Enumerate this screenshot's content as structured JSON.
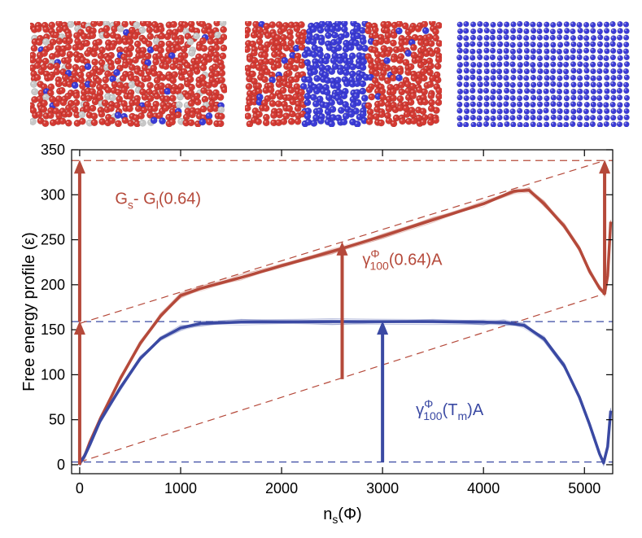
{
  "chart_data": {
    "type": "line",
    "xlabel": "n_s(Φ)",
    "ylabel": "Free energy profile (ε)",
    "xlim": [
      -80,
      5280
    ],
    "ylim": [
      -10,
      350
    ],
    "xticks": [
      "0",
      "1000",
      "2000",
      "3000",
      "4000",
      "5000"
    ],
    "yticks": [
      "0",
      "50",
      "100",
      "150",
      "200",
      "250",
      "300",
      "350"
    ],
    "colors": {
      "red": "#b5493a",
      "blue": "#3a49a3"
    },
    "series": [
      {
        "color": "red",
        "points": [
          [
            0,
            2
          ],
          [
            50,
            10
          ],
          [
            100,
            25
          ],
          [
            200,
            50
          ],
          [
            400,
            95
          ],
          [
            600,
            135
          ],
          [
            800,
            165
          ],
          [
            1000,
            188
          ],
          [
            1200,
            196
          ],
          [
            1600,
            208
          ],
          [
            2000,
            221
          ],
          [
            2500,
            237
          ],
          [
            3000,
            254
          ],
          [
            3500,
            272
          ],
          [
            4000,
            290
          ],
          [
            4300,
            304
          ],
          [
            4450,
            305
          ],
          [
            4600,
            290
          ],
          [
            4800,
            265
          ],
          [
            4950,
            240
          ],
          [
            5050,
            215
          ],
          [
            5150,
            196
          ],
          [
            5200,
            190
          ],
          [
            5230,
            210
          ],
          [
            5260,
            270
          ]
        ]
      },
      {
        "color": "blue",
        "points": [
          [
            0,
            2
          ],
          [
            50,
            10
          ],
          [
            100,
            22
          ],
          [
            200,
            48
          ],
          [
            400,
            85
          ],
          [
            600,
            118
          ],
          [
            800,
            140
          ],
          [
            1000,
            152
          ],
          [
            1200,
            157
          ],
          [
            1600,
            158.5
          ],
          [
            2500,
            159
          ],
          [
            3500,
            159
          ],
          [
            4000,
            158.5
          ],
          [
            4200,
            158
          ],
          [
            4400,
            155
          ],
          [
            4600,
            140
          ],
          [
            4800,
            110
          ],
          [
            4950,
            75
          ],
          [
            5050,
            45
          ],
          [
            5150,
            12
          ],
          [
            5190,
            2
          ],
          [
            5230,
            20
          ],
          [
            5260,
            60
          ]
        ]
      }
    ],
    "reference_lines": [
      {
        "color": "blue",
        "dash": true,
        "y": 159
      },
      {
        "color": "blue",
        "dash": true,
        "y": 3
      },
      {
        "color": "red",
        "dash": true,
        "y": 338
      },
      {
        "color": "red",
        "dash": true,
        "from": [
          0,
          3
        ],
        "to": [
          5200,
          190
        ]
      },
      {
        "color": "red",
        "dash": true,
        "from": [
          0,
          157
        ],
        "to": [
          5200,
          338
        ]
      }
    ],
    "arrows": [
      {
        "color": "red",
        "x": 0,
        "y_from": 0,
        "y_to": 159
      },
      {
        "color": "red",
        "x": 0,
        "y_from": 159,
        "y_to": 338
      },
      {
        "color": "red",
        "x": 2600,
        "y_from": 95,
        "y_to": 247
      },
      {
        "color": "blue",
        "x": 3000,
        "y_from": 3,
        "y_to": 159
      },
      {
        "color": "red",
        "x": 5200,
        "y_from": 190,
        "y_to": 338
      }
    ],
    "annotations": [
      {
        "color": "red",
        "x": 350,
        "y": 290,
        "text": "G_s- G_l(0.64)"
      },
      {
        "color": "red",
        "x": 2800,
        "y": 222,
        "text": "γ^Φ_100(0.64)A"
      },
      {
        "color": "blue",
        "x": 3330,
        "y": 55,
        "text": "γ^Φ_100(T_m)A"
      }
    ]
  },
  "snapshots": [
    {
      "state": "liquid",
      "colors": [
        "#d43a33",
        "#c8c8c8",
        "#3b3bd6"
      ]
    },
    {
      "state": "interface",
      "colors": [
        "#d43a33",
        "#3b3bd6"
      ]
    },
    {
      "state": "solid",
      "colors": [
        "#3b3bd6"
      ]
    }
  ]
}
